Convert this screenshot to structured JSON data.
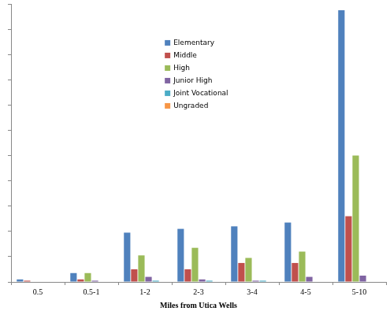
{
  "chart_data": {
    "type": "bar",
    "x_label": "Miles from Utica Wells",
    "categories": [
      "0.5",
      "0.5-1",
      "1-2",
      "2-3",
      "3-4",
      "4-5",
      "5-10"
    ],
    "series": [
      {
        "name": "Elementary",
        "color": "#4f81bd",
        "values": [
          2,
          7,
          39,
          42,
          44,
          47,
          215
        ]
      },
      {
        "name": "Middle",
        "color": "#c0504d",
        "values": [
          1,
          2,
          10,
          10,
          15,
          15,
          52
        ]
      },
      {
        "name": "High",
        "color": "#9bbb59",
        "values": [
          0,
          7,
          21,
          27,
          19,
          24,
          100
        ]
      },
      {
        "name": "Junior High",
        "color": "#8064a2",
        "values": [
          0,
          1,
          4,
          2,
          1,
          4,
          5
        ]
      },
      {
        "name": "Joint Vocational",
        "color": "#4bacc6",
        "values": [
          0,
          0,
          1,
          1,
          1,
          0,
          0
        ]
      },
      {
        "name": "Ungraded",
        "color": "#f79646",
        "values": [
          0,
          0,
          0,
          0,
          0,
          0,
          0
        ]
      }
    ],
    "ylim": [
      0,
      220
    ],
    "yticks": [
      0,
      20,
      40,
      60,
      80,
      100,
      120,
      140,
      160,
      180,
      200,
      220
    ],
    "grid": false,
    "legend": "upper center",
    "tick_labels": "x"
  }
}
